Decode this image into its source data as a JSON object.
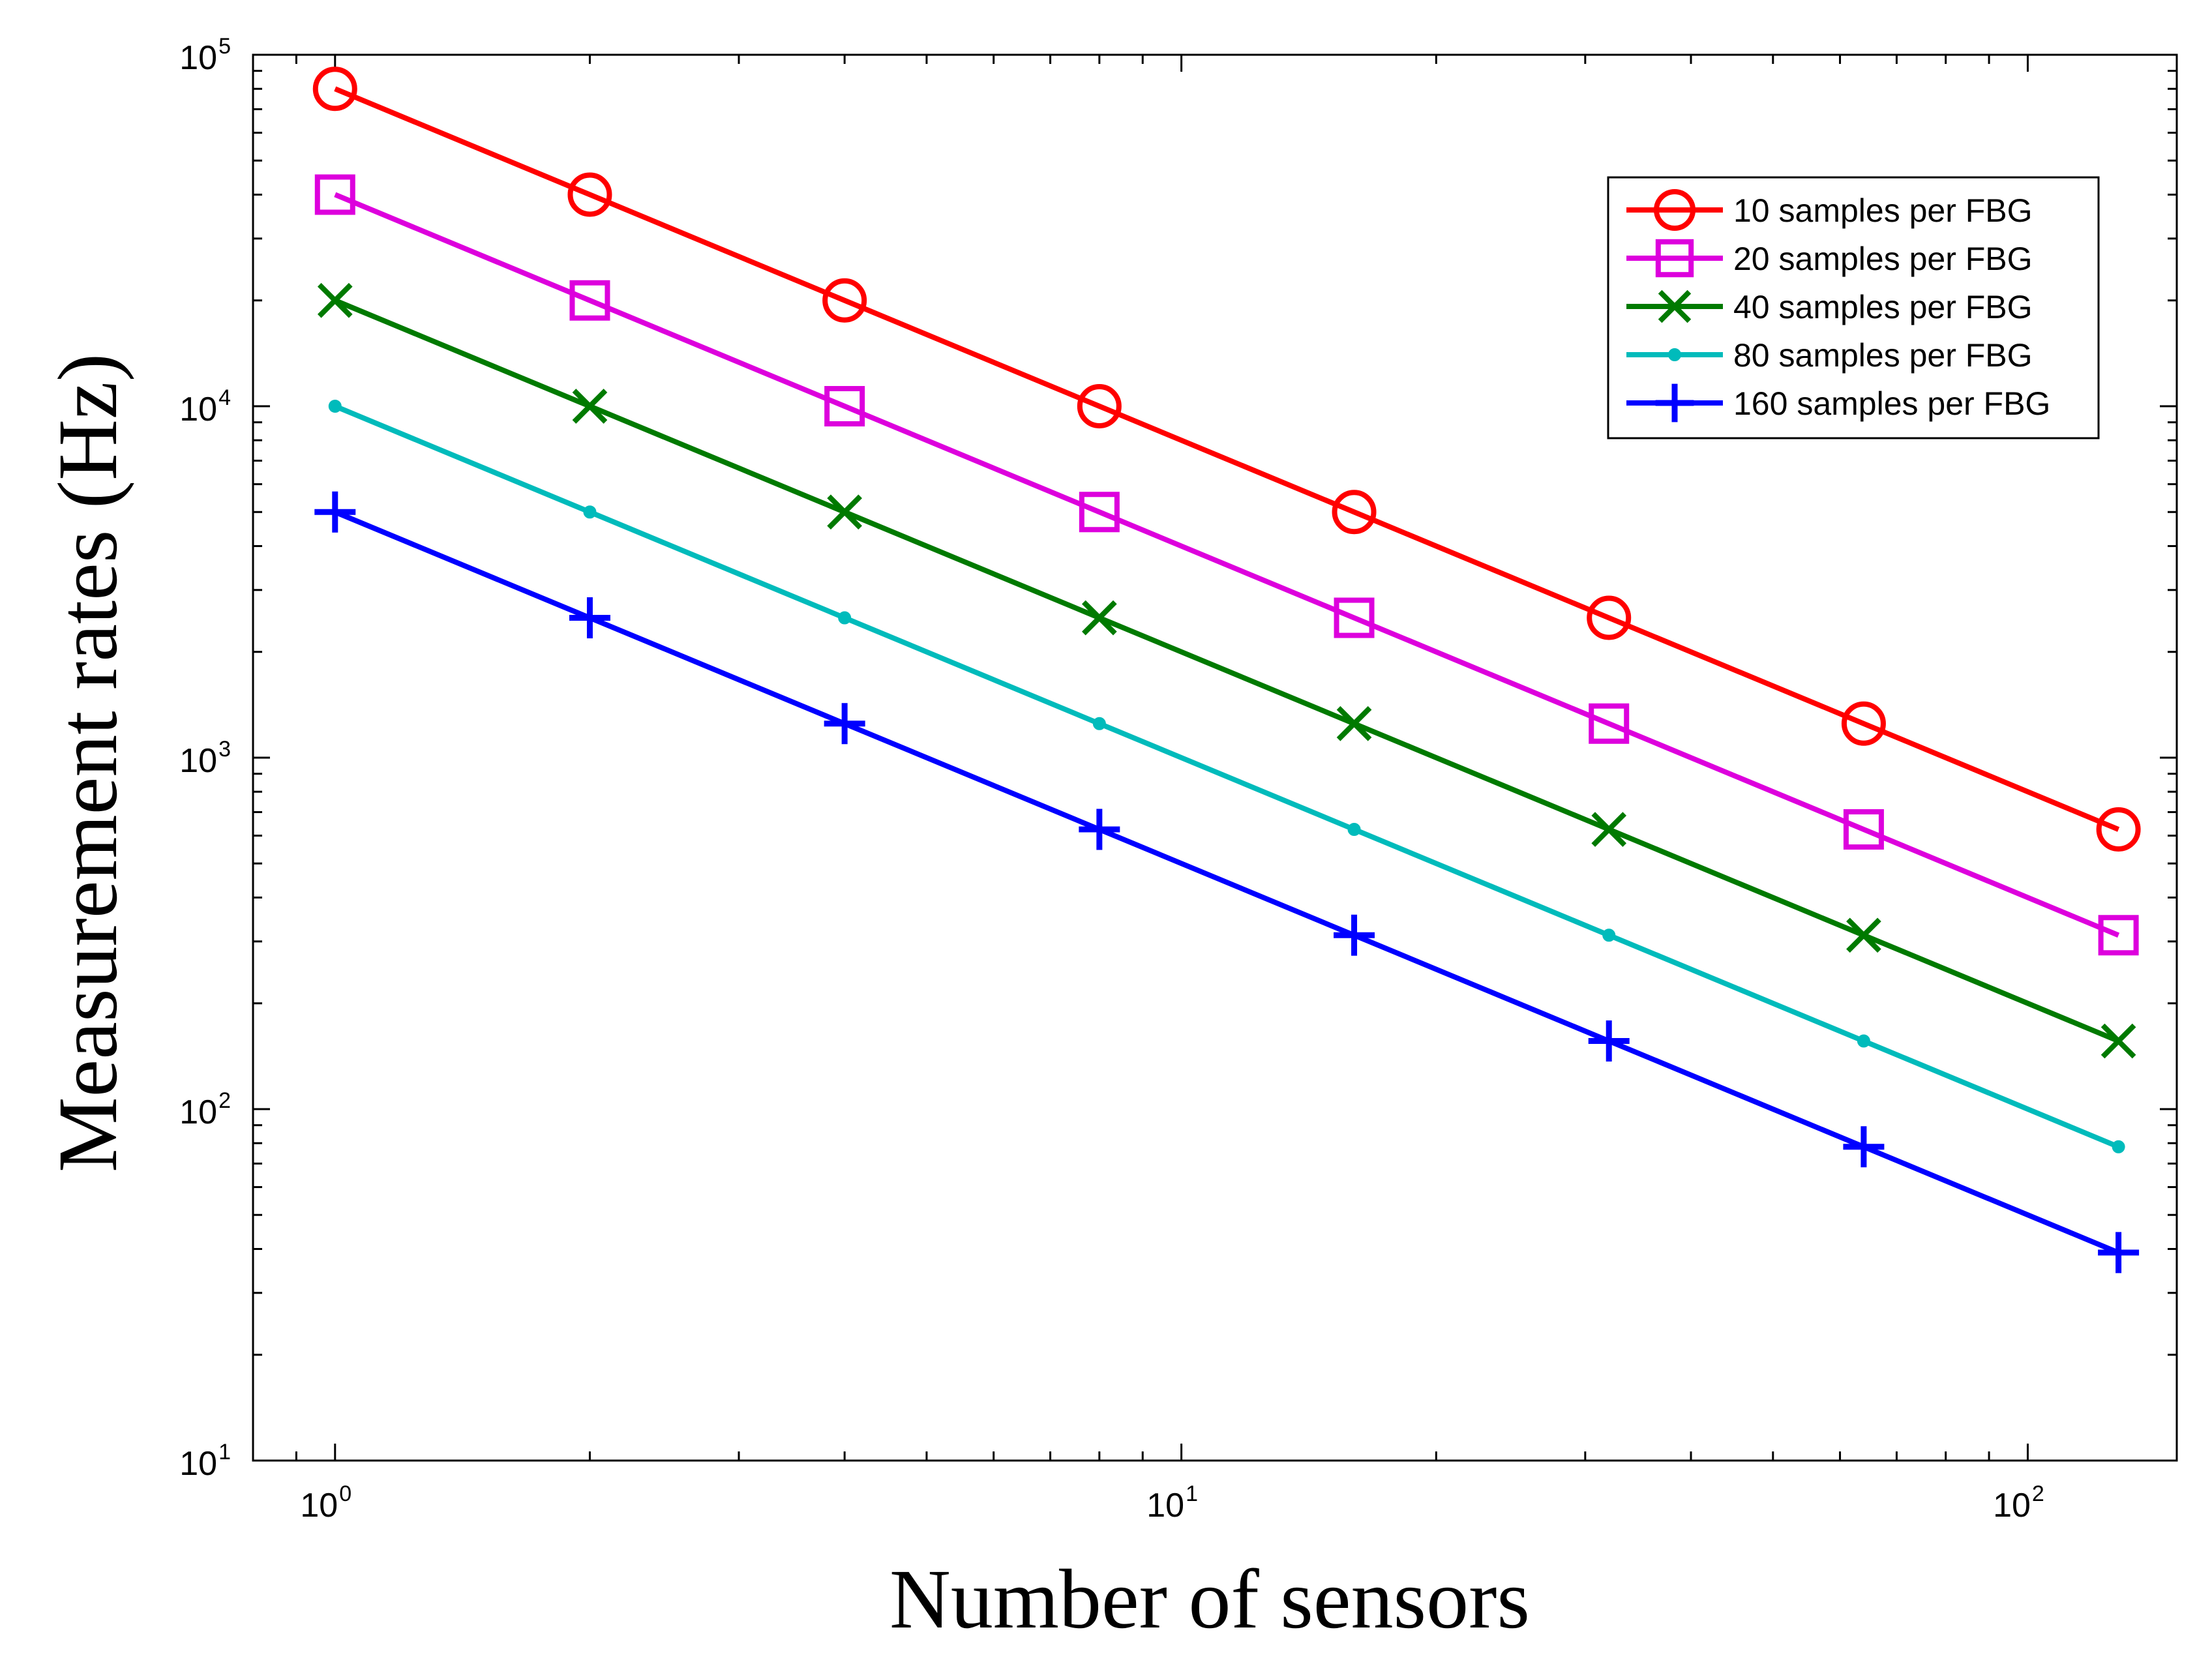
{
  "chart_data": {
    "type": "line",
    "xscale": "log",
    "yscale": "log",
    "xlabel": "Number of sensors",
    "ylabel": "Measurement rates (Hz)",
    "xlim": [
      0.8,
      150
    ],
    "ylim": [
      10,
      100000
    ],
    "xticks": [
      {
        "base": "10",
        "exp": "0",
        "value": 1
      },
      {
        "base": "10",
        "exp": "1",
        "value": 10
      },
      {
        "base": "10",
        "exp": "2",
        "value": 100
      }
    ],
    "yticks": [
      {
        "base": "10",
        "exp": "1",
        "value": 10
      },
      {
        "base": "10",
        "exp": "2",
        "value": 100
      },
      {
        "base": "10",
        "exp": "3",
        "value": 1000
      },
      {
        "base": "10",
        "exp": "4",
        "value": 10000
      },
      {
        "base": "10",
        "exp": "5",
        "value": 100000
      }
    ],
    "x": [
      1,
      2,
      4,
      8,
      16,
      32,
      64,
      128
    ],
    "series": [
      {
        "name": "10 samples per FBG",
        "color": "#ff0000",
        "marker": "circle",
        "values": [
          80000,
          40000,
          20000,
          10000,
          5000,
          2500,
          1250,
          625
        ]
      },
      {
        "name": "20 samples per FBG",
        "color": "#dd00dd",
        "marker": "square",
        "values": [
          40000,
          20000,
          10000,
          5000,
          2500,
          1250,
          625,
          312.5
        ]
      },
      {
        "name": "40 samples per FBG",
        "color": "#007a00",
        "marker": "x",
        "values": [
          20000,
          10000,
          5000,
          2500,
          1250,
          625,
          312.5,
          156.25
        ]
      },
      {
        "name": "80 samples per FBG",
        "color": "#00bbbb",
        "marker": "dot",
        "values": [
          10000,
          5000,
          2500,
          1250,
          625,
          312.5,
          156.25,
          78.125
        ]
      },
      {
        "name": "160 samples per FBG",
        "color": "#0000ff",
        "marker": "plus",
        "values": [
          5000,
          2500,
          1250,
          625,
          312.5,
          156.25,
          78.125,
          39.0625
        ]
      }
    ],
    "legend_position": "top-right",
    "grid": false
  }
}
